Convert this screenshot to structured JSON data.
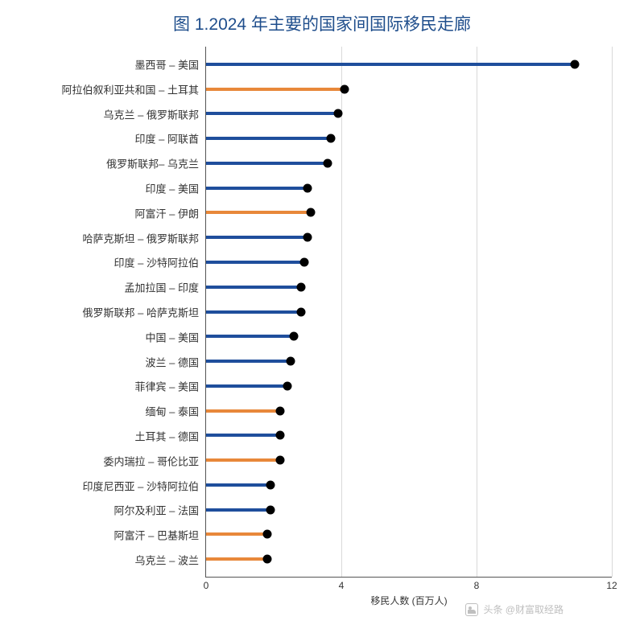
{
  "chart": {
    "type": "lollipop-horizontal",
    "title": "图 1.2024 年主要的国家间国际移民走廊",
    "title_color": "#1f4e8c",
    "title_fontsize": 21,
    "background_color": "#ffffff",
    "grid_color": "#d9d9d9",
    "axis_color": "#555555",
    "label_color": "#333333",
    "label_fontsize": 13,
    "xaxis_label": "移民人数 (百万人)",
    "xaxis_label_fontsize": 12,
    "xlim": [
      0,
      12
    ],
    "xticks": [
      0,
      4,
      8,
      12
    ],
    "line_width": 4,
    "dot_size": 11,
    "dot_color": "#000000",
    "colors": {
      "blue": "#1f4e9c",
      "orange": "#e8883a"
    },
    "categories": [
      {
        "label": "墨西哥 – 美国",
        "value": 10.9,
        "color": "blue"
      },
      {
        "label": "阿拉伯叙利亚共和国 – 土耳其",
        "value": 4.1,
        "color": "orange"
      },
      {
        "label": "乌克兰 – 俄罗斯联邦",
        "value": 3.9,
        "color": "blue"
      },
      {
        "label": "印度 – 阿联酋",
        "value": 3.7,
        "color": "blue"
      },
      {
        "label": "俄罗斯联邦– 乌克兰",
        "value": 3.6,
        "color": "blue"
      },
      {
        "label": "印度 – 美国",
        "value": 3.0,
        "color": "blue"
      },
      {
        "label": "阿富汗 – 伊朗",
        "value": 3.1,
        "color": "orange"
      },
      {
        "label": "哈萨克斯坦 – 俄罗斯联邦",
        "value": 3.0,
        "color": "blue"
      },
      {
        "label": "印度 – 沙特阿拉伯",
        "value": 2.9,
        "color": "blue"
      },
      {
        "label": "孟加拉国 – 印度",
        "value": 2.8,
        "color": "blue"
      },
      {
        "label": "俄罗斯联邦 – 哈萨克斯坦",
        "value": 2.8,
        "color": "blue"
      },
      {
        "label": "中国 – 美国",
        "value": 2.6,
        "color": "blue"
      },
      {
        "label": "波兰 – 德国",
        "value": 2.5,
        "color": "blue"
      },
      {
        "label": "菲律宾 – 美国",
        "value": 2.4,
        "color": "blue"
      },
      {
        "label": "缅甸 – 泰国",
        "value": 2.2,
        "color": "orange"
      },
      {
        "label": "土耳其 – 德国",
        "value": 2.2,
        "color": "blue"
      },
      {
        "label": "委内瑞拉 – 哥伦比亚",
        "value": 2.2,
        "color": "orange"
      },
      {
        "label": "印度尼西亚 – 沙特阿拉伯",
        "value": 1.9,
        "color": "blue"
      },
      {
        "label": "阿尔及利亚 – 法国",
        "value": 1.9,
        "color": "blue"
      },
      {
        "label": "阿富汗 – 巴基斯坦",
        "value": 1.8,
        "color": "orange"
      },
      {
        "label": "乌克兰 – 波兰",
        "value": 1.8,
        "color": "orange"
      }
    ]
  },
  "watermark": {
    "text": "头条 @财富取经路",
    "color": "#bfbfbf",
    "fontsize": 12
  }
}
